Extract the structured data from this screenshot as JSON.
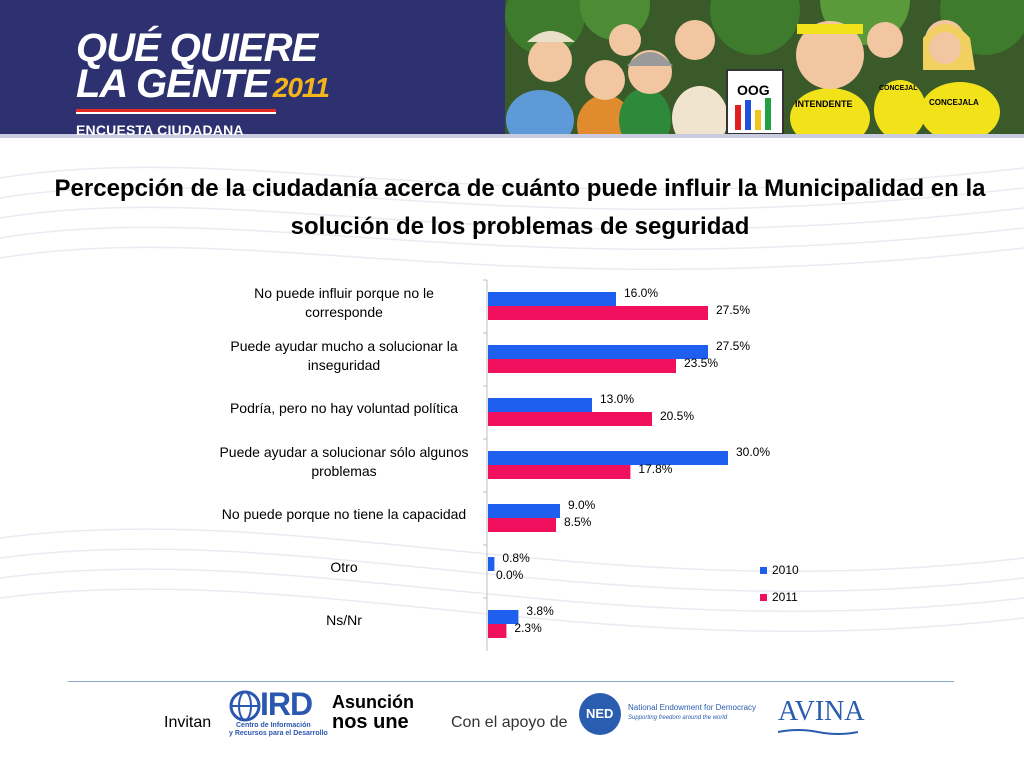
{
  "header": {
    "logo_line1": "QUÉ QUIERE",
    "logo_line2": "LA GENTE",
    "logo_year": "2011",
    "logo_sub": "ENCUESTA CIUDADANA",
    "illustration_signs": [
      "OOG",
      "INTENDENTE",
      "CONCEJALA",
      "CONCEJAL"
    ]
  },
  "chart_data": {
    "type": "bar",
    "orientation": "horizontal",
    "title": "Percepción de la ciudadanía acerca de cuánto puede influir la Municipalidad en la solución de los problemas de seguridad",
    "categories": [
      "No puede influir porque no le corresponde",
      "Puede ayudar mucho a solucionar la inseguridad",
      "Podría, pero no hay voluntad política",
      "Puede ayudar a solucionar sólo algunos problemas",
      "No puede porque no tiene la capacidad",
      "Otro",
      "Ns/Nr"
    ],
    "series": [
      {
        "name": "2010",
        "values": [
          16.0,
          27.5,
          13.0,
          30.0,
          9.0,
          0.8,
          3.8
        ],
        "labels": [
          "16.0%",
          "27.5%",
          "13.0%",
          "30.0%",
          "9.0%",
          "0.8%",
          "3.8%"
        ],
        "color": "#1f5ff0"
      },
      {
        "name": "2011",
        "values": [
          27.5,
          23.5,
          20.5,
          17.8,
          8.5,
          0.0,
          2.3
        ],
        "labels": [
          "27.5%",
          "23.5%",
          "20.5%",
          "17.8%",
          "8.5%",
          "0.0%",
          "2.3%"
        ],
        "color": "#f0105e"
      }
    ],
    "legend_position": "right",
    "grid": false,
    "xlim": [
      0,
      30
    ]
  },
  "footer": {
    "invitan": "Invitan",
    "ird_name": "IRD",
    "ird_sub1": "Centro de Información",
    "ird_sub2": "y Recursos para el Desarrollo",
    "asuncion1": "Asunción",
    "asuncion2": "nos une",
    "apoyo": "Con el apoyo de",
    "ned_badge": "NED",
    "ned_name": "National Endowment for Democracy",
    "ned_tagline": "Supporting freedom around the world",
    "avina": "AVINA"
  }
}
